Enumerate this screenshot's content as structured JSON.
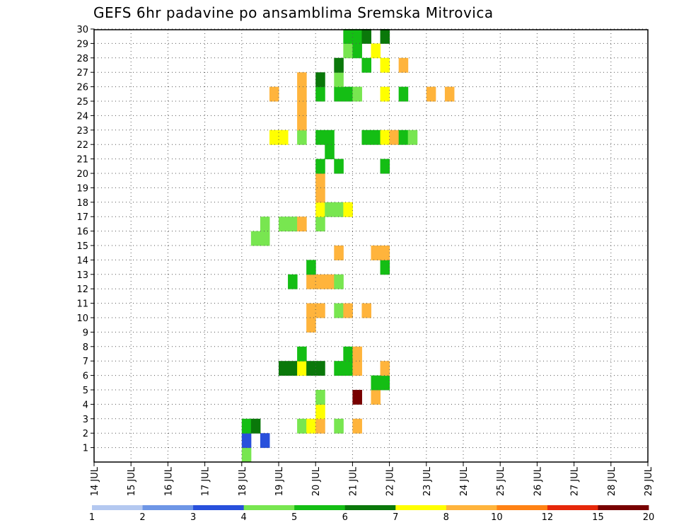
{
  "chart_data": {
    "type": "heatmap",
    "title": "GEFS 6hr padavine po ansamblima Sremska Mitrovica",
    "xlabel": "",
    "ylabel": "",
    "x_ticks": [
      "14 JUL",
      "15 JUL",
      "16 JUL",
      "17 JUL",
      "18 JUL",
      "19 JUL",
      "20 JUL",
      "21 JUL",
      "22 JUL",
      "23 JUL",
      "24 JUL",
      "25 JUL",
      "26 JUL",
      "27 JUL",
      "28 JUL",
      "29 JUL"
    ],
    "y_ticks": [
      "1",
      "2",
      "3",
      "4",
      "5",
      "6",
      "7",
      "8",
      "9",
      "10",
      "11",
      "12",
      "13",
      "14",
      "15",
      "16",
      "17",
      "18",
      "19",
      "20",
      "21",
      "22",
      "23",
      "24",
      "25",
      "26",
      "27",
      "28",
      "29",
      "30"
    ],
    "xlim": [
      0,
      15
    ],
    "ylim": [
      0,
      30
    ],
    "grid": true,
    "colorbar": {
      "levels": [
        "1",
        "2",
        "3",
        "4",
        "5",
        "6",
        "7",
        "8",
        "10",
        "12",
        "15",
        "20"
      ],
      "colors": [
        "#b4c8f0",
        "#6e96e6",
        "#2850dc",
        "#78e650",
        "#14be14",
        "#0a780a",
        "#ffff00",
        "#ffb43c",
        "#ff8214",
        "#e6280a",
        "#780000"
      ]
    },
    "cells": [
      [
        16,
        0,
        3
      ],
      [
        16,
        1,
        2
      ],
      [
        18,
        1,
        2
      ],
      [
        16,
        2,
        4
      ],
      [
        17,
        2,
        5
      ],
      [
        22,
        2,
        3
      ],
      [
        23,
        2,
        6
      ],
      [
        24,
        2,
        7
      ],
      [
        26,
        2,
        3
      ],
      [
        28,
        2,
        7
      ],
      [
        24,
        3,
        6
      ],
      [
        24,
        4,
        3
      ],
      [
        28,
        4,
        10
      ],
      [
        30,
        4,
        7
      ],
      [
        30,
        5,
        4
      ],
      [
        31,
        5,
        4
      ],
      [
        20,
        6,
        5
      ],
      [
        21,
        6,
        5
      ],
      [
        22,
        6,
        6
      ],
      [
        23,
        6,
        5
      ],
      [
        24,
        6,
        5
      ],
      [
        26,
        6,
        4
      ],
      [
        27,
        6,
        4
      ],
      [
        28,
        6,
        7
      ],
      [
        31,
        6,
        7
      ],
      [
        22,
        7,
        4
      ],
      [
        27,
        7,
        4
      ],
      [
        28,
        7,
        7
      ],
      [
        23,
        9,
        7
      ],
      [
        23,
        10,
        7
      ],
      [
        24,
        10,
        7
      ],
      [
        26,
        10,
        3
      ],
      [
        27,
        10,
        7
      ],
      [
        29,
        10,
        7
      ],
      [
        21,
        12,
        4
      ],
      [
        23,
        12,
        7
      ],
      [
        24,
        12,
        7
      ],
      [
        25,
        12,
        7
      ],
      [
        26,
        12,
        3
      ],
      [
        23,
        13,
        4
      ],
      [
        31,
        13,
        4
      ],
      [
        26,
        14,
        7
      ],
      [
        30,
        14,
        7
      ],
      [
        31,
        14,
        7
      ],
      [
        18,
        15,
        3
      ],
      [
        17,
        15,
        3
      ],
      [
        18,
        16,
        3
      ],
      [
        20,
        16,
        3
      ],
      [
        21,
        16,
        3
      ],
      [
        22,
        16,
        7
      ],
      [
        24,
        16,
        3
      ],
      [
        24,
        17,
        6
      ],
      [
        25,
        17,
        3
      ],
      [
        26,
        17,
        3
      ],
      [
        27,
        17,
        6
      ],
      [
        24,
        18,
        7
      ],
      [
        24,
        19,
        7
      ],
      [
        24,
        20,
        4
      ],
      [
        26,
        20,
        4
      ],
      [
        31,
        20,
        4
      ],
      [
        25,
        21,
        4
      ],
      [
        19,
        22,
        6
      ],
      [
        20,
        22,
        6
      ],
      [
        22,
        22,
        3
      ],
      [
        24,
        22,
        4
      ],
      [
        25,
        22,
        4
      ],
      [
        29,
        22,
        4
      ],
      [
        30,
        22,
        4
      ],
      [
        31,
        22,
        6
      ],
      [
        32,
        22,
        7
      ],
      [
        33,
        22,
        4
      ],
      [
        34,
        22,
        3
      ],
      [
        22,
        23,
        7
      ],
      [
        22,
        24,
        7
      ],
      [
        19,
        25,
        7
      ],
      [
        22,
        25,
        7
      ],
      [
        24,
        25,
        4
      ],
      [
        26,
        25,
        4
      ],
      [
        27,
        25,
        4
      ],
      [
        28,
        25,
        3
      ],
      [
        31,
        25,
        6
      ],
      [
        33,
        25,
        4
      ],
      [
        36,
        25,
        7
      ],
      [
        38,
        25,
        7
      ],
      [
        22,
        26,
        7
      ],
      [
        24,
        26,
        5
      ],
      [
        26,
        26,
        3
      ],
      [
        26,
        27,
        5
      ],
      [
        29,
        27,
        4
      ],
      [
        31,
        27,
        6
      ],
      [
        33,
        27,
        7
      ],
      [
        27,
        28,
        3
      ],
      [
        28,
        28,
        4
      ],
      [
        30,
        28,
        6
      ],
      [
        27,
        29,
        4
      ],
      [
        28,
        29,
        4
      ],
      [
        29,
        29,
        5
      ],
      [
        31,
        29,
        5
      ]
    ]
  }
}
